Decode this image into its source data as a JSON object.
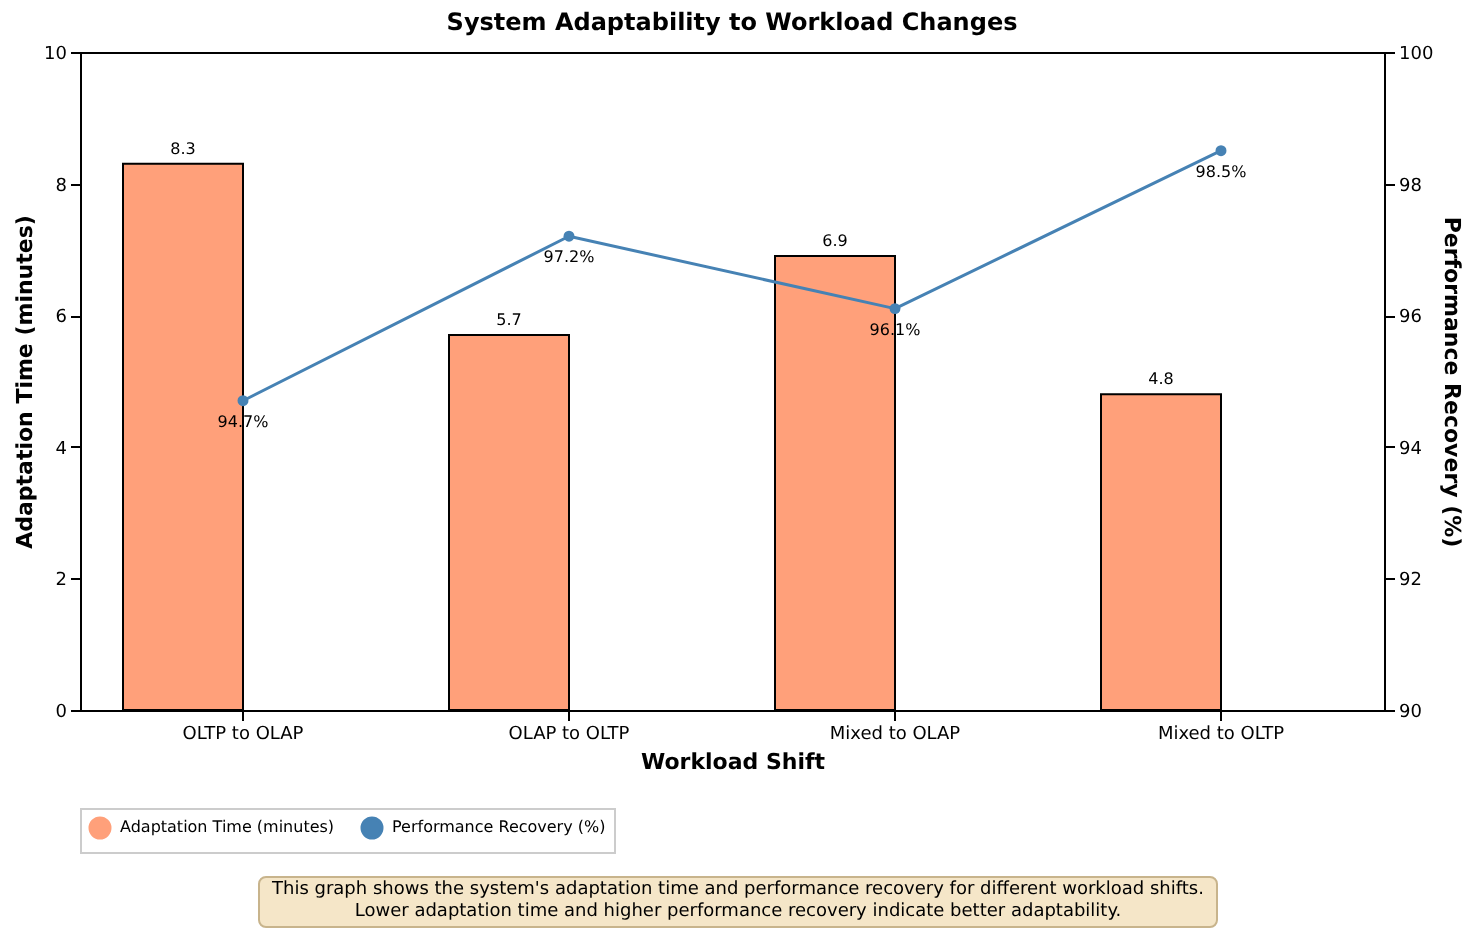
{
  "chart_data": {
    "type": "bar",
    "title": "System Adaptability to Workload Changes",
    "xlabel": "Workload Shift",
    "ylabel": "Adaptation Time (minutes)",
    "y2label": "Performance Recovery (%)",
    "categories": [
      "OLTP to OLAP",
      "OLAP to OLTP",
      "Mixed to OLAP",
      "Mixed to OLTP"
    ],
    "series": [
      {
        "name": "Adaptation Time (minutes)",
        "color": "#ffa07a",
        "values": [
          8.3,
          5.7,
          6.9,
          4.8
        ],
        "value_labels": [
          "8.3",
          "5.7",
          "6.9",
          "4.8"
        ]
      },
      {
        "name": "Performance Recovery (%)",
        "type": "line",
        "axis": "y2",
        "color": "#4682b4",
        "values": [
          94.7,
          97.2,
          96.1,
          98.5
        ],
        "value_labels": [
          "94.7%",
          "97.2%",
          "96.1%",
          "98.5%"
        ]
      }
    ],
    "ylim": [
      0,
      10
    ],
    "yticks": [
      0,
      2,
      4,
      6,
      8,
      10
    ],
    "y2lim": [
      90,
      100
    ],
    "y2ticks": [
      90,
      92,
      94,
      96,
      98,
      100
    ],
    "marker": "circle",
    "line_style": "solid",
    "legend": "bottom",
    "grid": false,
    "annotations": [
      "This graph shows the system's adaptation time and performance recovery for different workload shifts.\nLower adaptation time and higher performance recovery indicate better adaptability."
    ]
  }
}
